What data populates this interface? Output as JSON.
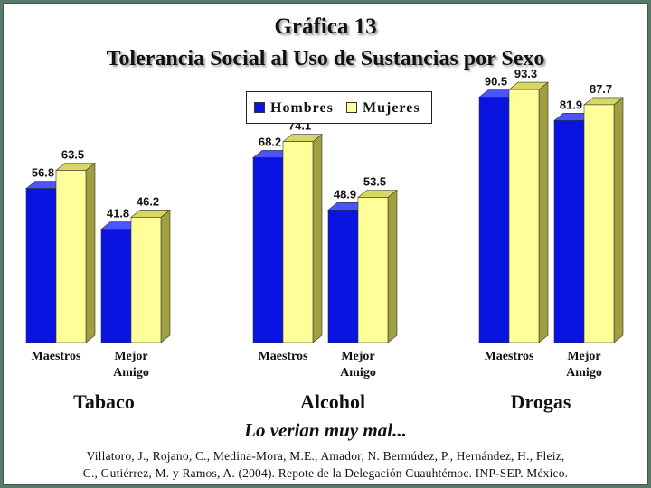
{
  "title_line1": "Gráfica 13",
  "title_line2": "Tolerancia Social al Uso de Sustancias por Sexo",
  "caption": "Lo verian muy mal...",
  "source_line1": "Villatoro, J., Rojano, C., Medina-Mora, M.E., Amador, N. Bermúdez, P., Hernández, H., Fleiz,",
  "source_line2": "C., Gutiérrez, M. y Ramos, A. (2004). Repote de la Delegación Cuauhtémoc. INP-SEP. México.",
  "colors": {
    "hombres": "#0a14e0",
    "mujeres": "#ffff99"
  },
  "chart_data": {
    "type": "bar",
    "title": "Gráfica 13 Tolerancia Social al Uso de Sustancias por Sexo",
    "groups": [
      "Tabaco",
      "Alcohol",
      "Drogas"
    ],
    "categories": [
      "Maestros",
      "Mejor Amigo"
    ],
    "category_labels": [
      [
        "Maestros"
      ],
      [
        "Mejor",
        "Amigo"
      ]
    ],
    "series": [
      {
        "name": "Hombres",
        "values": [
          [
            56.8,
            41.8
          ],
          [
            68.2,
            48.9
          ],
          [
            90.5,
            81.9
          ]
        ]
      },
      {
        "name": "Mujeres",
        "values": [
          [
            63.5,
            46.2
          ],
          [
            74.1,
            53.5
          ],
          [
            93.3,
            87.7
          ]
        ]
      }
    ],
    "ylim": [
      0,
      100
    ],
    "grid": false,
    "legend": "top-center"
  }
}
